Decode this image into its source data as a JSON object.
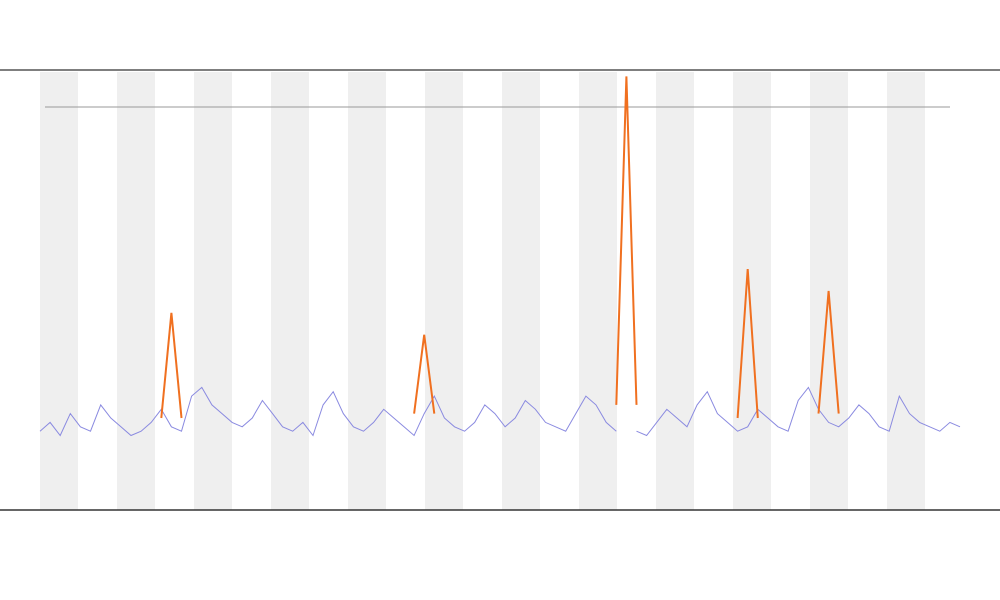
{
  "chart_data": {
    "type": "line",
    "ylim": [
      0,
      100
    ],
    "series": [
      {
        "color": "#8a8ae0",
        "values": [
          18,
          20,
          17,
          22,
          19,
          18,
          24,
          21,
          19,
          17,
          18,
          20,
          23,
          19,
          18,
          26,
          28,
          24,
          22,
          20,
          19,
          21,
          25,
          22,
          19,
          18,
          20,
          17,
          24,
          27,
          22,
          19,
          18,
          20,
          23,
          21,
          19,
          17,
          22,
          26,
          21,
          19,
          18,
          20,
          24,
          22,
          19,
          21,
          25,
          23,
          20,
          19,
          18,
          22,
          26,
          24,
          20,
          18,
          null,
          18,
          17,
          20,
          23,
          21,
          19,
          24,
          27,
          22,
          20,
          18,
          19,
          23,
          21,
          19,
          18,
          25,
          28,
          23,
          20,
          19,
          21,
          24,
          22,
          19,
          18,
          26,
          22,
          20,
          19,
          18,
          20,
          19
        ]
      },
      {
        "color": "#f07020",
        "values": [
          null,
          null,
          null,
          null,
          null,
          null,
          null,
          null,
          null,
          null,
          null,
          null,
          21,
          45,
          21,
          null,
          null,
          null,
          null,
          null,
          null,
          null,
          null,
          null,
          null,
          null,
          null,
          null,
          null,
          null,
          null,
          null,
          null,
          null,
          null,
          null,
          null,
          22,
          40,
          22,
          null,
          null,
          null,
          null,
          null,
          null,
          null,
          null,
          null,
          null,
          null,
          null,
          null,
          null,
          null,
          null,
          null,
          24,
          99,
          24,
          null,
          null,
          null,
          null,
          null,
          null,
          null,
          null,
          null,
          21,
          55,
          21,
          null,
          null,
          null,
          null,
          null,
          22,
          50,
          22,
          null,
          null,
          null,
          null,
          null,
          null,
          null,
          null,
          null,
          null,
          null,
          null
        ]
      }
    ]
  }
}
